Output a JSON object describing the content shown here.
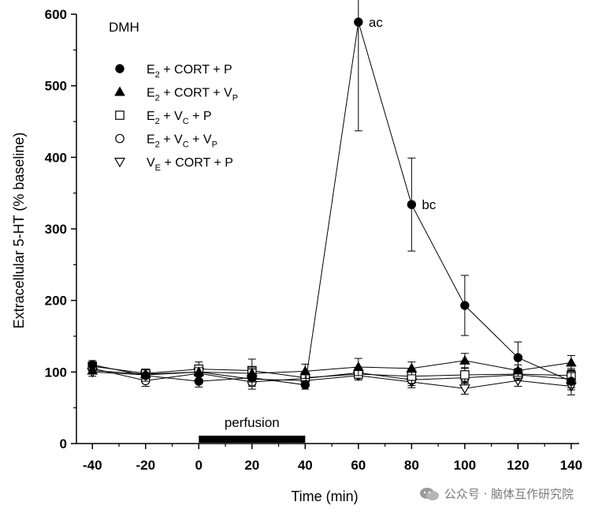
{
  "chart_data": {
    "type": "line",
    "panel_label": "DMH",
    "xlabel": "Time (min)",
    "ylabel": "Extracellular 5-HT (% baseline)",
    "xlim": [
      -46,
      143
    ],
    "ylim": [
      0,
      600
    ],
    "xticks": [
      "-40",
      "-20",
      "0",
      "20",
      "40",
      "60",
      "80",
      "100",
      "120",
      "140"
    ],
    "yticks": [
      "0",
      "100",
      "200",
      "300",
      "400",
      "500",
      "600"
    ],
    "perfusion": {
      "label": "perfusion",
      "start": 0,
      "end": 40
    },
    "legend": {
      "placement": "top-left",
      "entries": [
        {
          "marker": "filled-circle",
          "parts": [
            [
              "E",
              "2"
            ],
            [
              " + CORT + P",
              ""
            ]
          ]
        },
        {
          "marker": "filled-triangle",
          "parts": [
            [
              "E",
              "2"
            ],
            [
              " + CORT + V",
              "P"
            ]
          ]
        },
        {
          "marker": "open-square",
          "parts": [
            [
              "E",
              "2"
            ],
            [
              " + V",
              "C"
            ],
            [
              " + P",
              ""
            ]
          ]
        },
        {
          "marker": "open-circle",
          "parts": [
            [
              "E",
              "2"
            ],
            [
              " + V",
              "C"
            ],
            [
              " + V",
              "P"
            ]
          ]
        },
        {
          "marker": "open-triangle-down",
          "parts": [
            [
              "V",
              "E"
            ],
            [
              " + CORT + P",
              ""
            ]
          ]
        }
      ]
    },
    "series": [
      {
        "name": "E2 + CORT + P",
        "marker": "filled-circle",
        "x": [
          -40,
          -20,
          0,
          20,
          40,
          60,
          80,
          100,
          120,
          140
        ],
        "y": [
          110,
          95,
          87,
          92,
          82,
          589,
          334,
          193,
          120,
          87
        ],
        "err": [
          6,
          8,
          8,
          12,
          6,
          152,
          65,
          42,
          22,
          12
        ],
        "point_labels": [
          "",
          "",
          "",
          "",
          "",
          "ac",
          "bc",
          "",
          "",
          ""
        ]
      },
      {
        "name": "E2 + CORT + VP",
        "marker": "filled-triangle",
        "x": [
          -40,
          -20,
          0,
          20,
          40,
          60,
          80,
          100,
          120,
          140
        ],
        "y": [
          102,
          97,
          100,
          98,
          101,
          107,
          105,
          116,
          102,
          113
        ],
        "err": [
          5,
          6,
          6,
          8,
          10,
          12,
          9,
          10,
          8,
          10
        ]
      },
      {
        "name": "E2 + VC + P",
        "marker": "open-square",
        "x": [
          -40,
          -20,
          0,
          20,
          40,
          60,
          80,
          100,
          120,
          140
        ],
        "y": [
          108,
          98,
          104,
          102,
          92,
          97,
          94,
          96,
          97,
          95
        ],
        "err": [
          6,
          6,
          10,
          16,
          8,
          8,
          10,
          9,
          8,
          10
        ]
      },
      {
        "name": "E2 + VC + VP",
        "marker": "open-circle",
        "x": [
          -40,
          -20,
          0,
          20,
          40,
          60,
          80,
          100,
          120,
          140
        ],
        "y": [
          105,
          88,
          98,
          86,
          91,
          99,
          89,
          92,
          96,
          90
        ],
        "err": [
          6,
          8,
          8,
          10,
          8,
          6,
          8,
          8,
          8,
          12
        ]
      },
      {
        "name": "VE + CORT + P",
        "marker": "open-triangle-down",
        "x": [
          -40,
          -20,
          0,
          20,
          40,
          60,
          80,
          100,
          120,
          140
        ],
        "y": [
          100,
          96,
          100,
          90,
          88,
          95,
          86,
          77,
          88,
          80
        ],
        "err": [
          6,
          6,
          6,
          8,
          8,
          6,
          8,
          8,
          8,
          12
        ]
      }
    ]
  },
  "watermark": {
    "text": "公众号 · 脑体互作研究院",
    "icon": "wechat-icon"
  }
}
